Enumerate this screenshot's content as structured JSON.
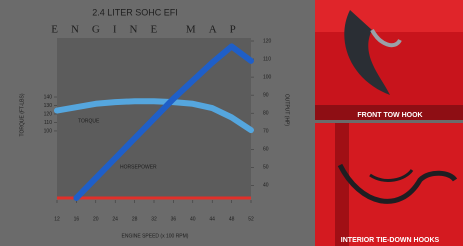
{
  "chart_data": {
    "type": "line",
    "title": "2.4 LITER SOHC EFI",
    "subtitle": "ENGINE MAP",
    "x_label": "ENGINE SPEED (x 100 RPM)",
    "y_label": "TORQUE (FT-LBS)",
    "y2_label": "OUTPUT (HP)",
    "x": [
      12,
      16,
      20,
      24,
      28,
      32,
      36,
      40,
      44,
      48,
      52
    ],
    "xlim": [
      12,
      52
    ],
    "xticks": [
      12,
      16,
      20,
      24,
      28,
      32,
      36,
      40,
      44,
      48,
      52
    ],
    "ylim": [
      21,
      206
    ],
    "yticks": [
      100,
      110,
      120,
      130,
      140
    ],
    "y2lim": [
      33,
      120
    ],
    "y2ticks": [
      40,
      50,
      60,
      70,
      80,
      90,
      100,
      110,
      120
    ],
    "series": [
      {
        "name": "TORQUE",
        "color": "#55a6de",
        "values": [
          124,
          128,
          132,
          134,
          135,
          135,
          134,
          132,
          127,
          116,
          101
        ]
      },
      {
        "name": "HORSEPOWER",
        "color": "#1f5fc8",
        "axis": "y2",
        "values": [
          null,
          33,
          44,
          55,
          66,
          77,
          88,
          98,
          108,
          117,
          109
        ]
      }
    ]
  },
  "photos": [
    {
      "caption": "FRONT TOW HOOK"
    },
    {
      "caption": "INTERIOR TIE-DOWN HOOKS"
    }
  ]
}
